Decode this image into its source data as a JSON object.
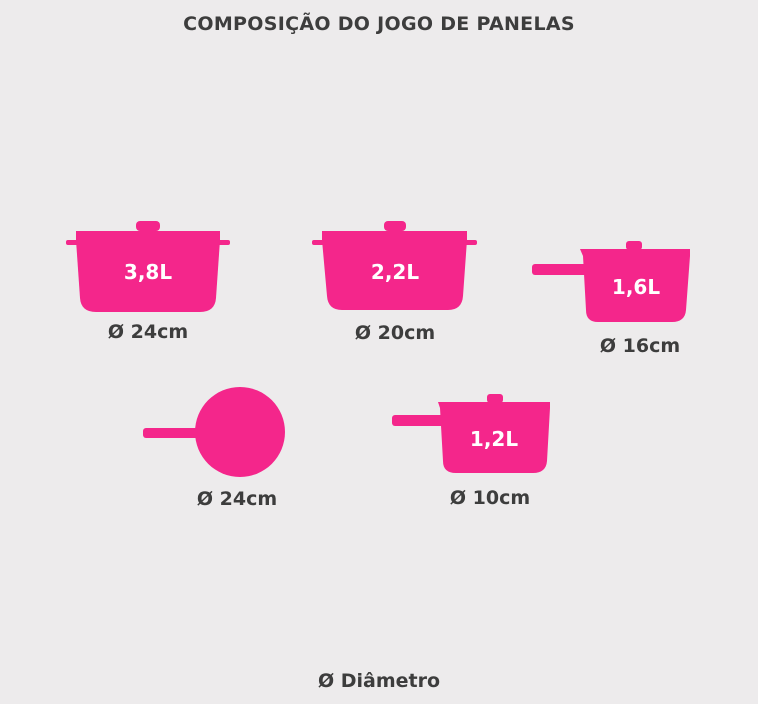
{
  "title": "COMPOSIÇÃO DO JOGO DE PANELAS",
  "accent_color": "#f4268b",
  "items": [
    {
      "type": "caçarola",
      "volume": "3,8L",
      "diameter": "Ø 24cm"
    },
    {
      "type": "caçarola",
      "volume": "2,2L",
      "diameter": "Ø 20cm"
    },
    {
      "type": "panela com cabo",
      "volume": "1,6L",
      "diameter": "Ø 16cm"
    },
    {
      "type": "frigideira",
      "diameter": "Ø 24cm"
    },
    {
      "type": "panela com cabo",
      "volume": "1,2L",
      "diameter": "Ø 10cm"
    }
  ],
  "legend": "Ø Diâmetro"
}
